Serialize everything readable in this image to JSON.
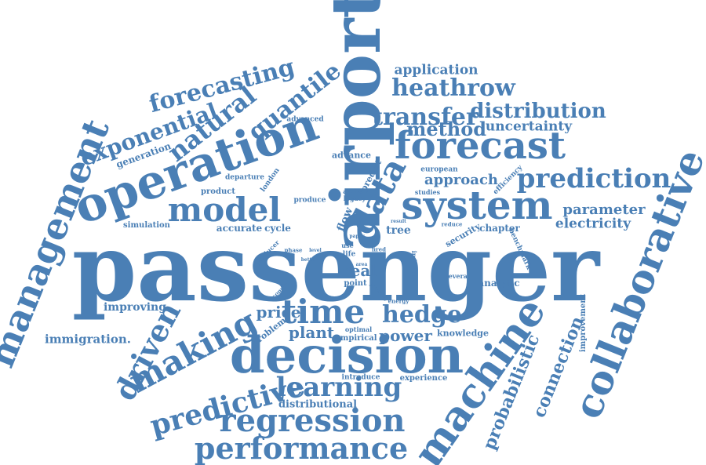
{
  "words": {
    "passenger": "passenger",
    "airport": "airport",
    "decision": "decision",
    "operation": "operation",
    "forecast": "forecast",
    "system": "system",
    "management": "management",
    "collaborative": "collaborative",
    "machine": "machine",
    "time": "time",
    "model": "model",
    "making": "making",
    "regression": "regression",
    "performance": "performance",
    "learning": "learning",
    "predictive": "predictive",
    "driven": "driven",
    "data": "data",
    "prediction": "prediction",
    "forecasting": "forecasting",
    "quantile": "quantile",
    "natural": "natural",
    "exponential": "exponential",
    "heathrow": "heathrow",
    "transfer": "transfer",
    "distribution": "distribution",
    "method": "method",
    "hedge": "hedge",
    "probabilistic": "probabilistic",
    "connection": "connection",
    "application": "application",
    "uncertainty": "uncertainty",
    "approach": "approach",
    "parameter": "parameter",
    "electricity": "electricity",
    "real": "real",
    "price": "price",
    "plant": "plant",
    "power": "power",
    "immigration": "immigration.",
    "improving": "improving",
    "distributional": "distributional",
    "chapter": "chapter",
    "analytic": "analytic",
    "cycle": "cycle",
    "accurate": "accurate",
    "simulation": "simulation",
    "tree": "tree",
    "generation": "generation",
    "flow": "flow",
    "advance": "advance",
    "advanced": "advanced",
    "european": "european",
    "efficiency": "efficiency",
    "product": "product",
    "departure": "departure",
    "london": "london",
    "produce": "produce",
    "predict": "predict",
    "arrival": "arrival",
    "legacy": "legacy",
    "studies": "studies",
    "security": "security",
    "benchmark": "benchmark",
    "reduce": "reduce",
    "improvement": "improvement",
    "knowledge": "knowledge",
    "several": "several",
    "experience": "experience",
    "introduce": "introduce",
    "empirical": "empirical",
    "optimal": "optimal",
    "problem": "problem",
    "point": "point",
    "individual": "individual",
    "life": "life",
    "use": "use",
    "phase": "phase",
    "producer": "producer",
    "better": "better",
    "copula": "copula",
    "fired": "fired",
    "journey": "journey",
    "energy": "energy",
    "result": "result",
    "level": "level",
    "paper": "paper",
    "area": "area"
  }
}
